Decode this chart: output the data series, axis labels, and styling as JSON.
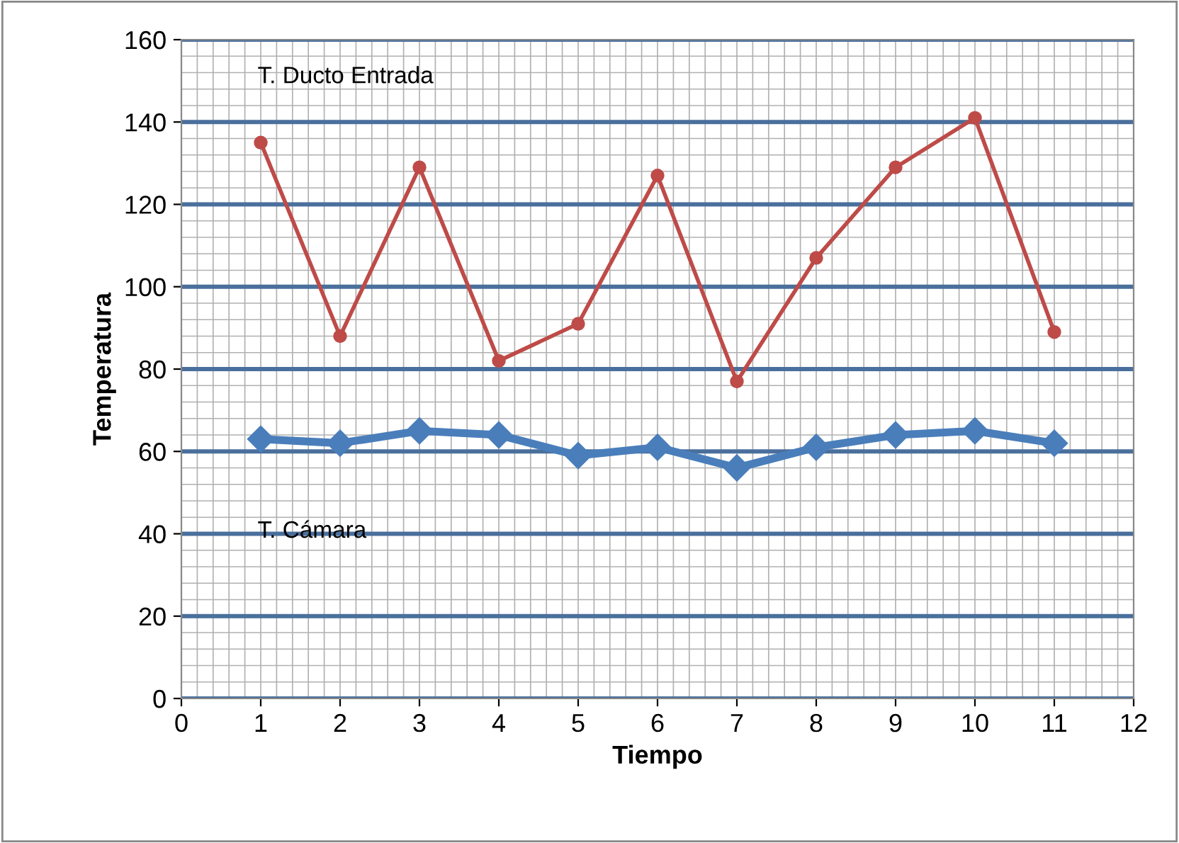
{
  "chart_data": {
    "type": "line",
    "xlabel": "Tiempo",
    "ylabel": "Temperatura",
    "x": [
      1,
      2,
      3,
      4,
      5,
      6,
      7,
      8,
      9,
      10,
      11
    ],
    "series": [
      {
        "name": "T. Ducto Entrada",
        "color": "#be4b48",
        "marker": "circle",
        "values": [
          135,
          88,
          129,
          82,
          91,
          127,
          77,
          107,
          129,
          141,
          89
        ]
      },
      {
        "name": "T. Cámara",
        "color": "#4a7ebb",
        "marker": "diamond",
        "values": [
          63,
          62,
          65,
          64,
          59,
          61,
          56,
          61,
          64,
          65,
          62
        ]
      }
    ],
    "xlim": [
      0,
      12
    ],
    "ylim": [
      0,
      160
    ],
    "xticks": [
      0,
      1,
      2,
      3,
      4,
      5,
      6,
      7,
      8,
      9,
      10,
      11,
      12
    ],
    "yticks": [
      0,
      20,
      40,
      60,
      80,
      100,
      120,
      140,
      160
    ],
    "grid": true,
    "line_style": "solid"
  }
}
